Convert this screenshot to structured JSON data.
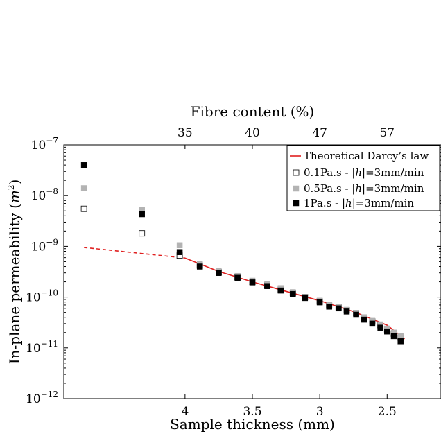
{
  "chart_data": {
    "type": "scatter",
    "title": "",
    "xlabel": "Sample thickness (mm)",
    "ylabel": "In-plane permeability (m²)",
    "ylabel_parts": [
      "In-plane permeability (",
      "m",
      "2",
      ")"
    ],
    "top_xlabel": "Fibre content (%)",
    "xlim": [
      4.9,
      2.1
    ],
    "x_reversed": true,
    "ylim": [
      1e-12,
      1e-07
    ],
    "y_scale": "log",
    "grid": false,
    "legend_placement": "top-right",
    "x_ticks": [
      {
        "value": 4.0,
        "label": "4"
      },
      {
        "value": 3.5,
        "label": "3.5"
      },
      {
        "value": 3.0,
        "label": "3"
      },
      {
        "value": 2.5,
        "label": "2.5"
      }
    ],
    "y_ticks": [
      {
        "value": 1e-07,
        "base": "10",
        "exp": "−7"
      },
      {
        "value": 1e-08,
        "base": "10",
        "exp": "−8"
      },
      {
        "value": 1e-09,
        "base": "10",
        "exp": "−9"
      },
      {
        "value": 1e-10,
        "base": "10",
        "exp": "−10"
      },
      {
        "value": 1e-11,
        "base": "10",
        "exp": "−11"
      },
      {
        "value": 1e-12,
        "base": "10",
        "exp": "−12"
      }
    ],
    "top_ticks": [
      {
        "x": 4.0,
        "label": "35"
      },
      {
        "x": 3.5,
        "label": "40"
      },
      {
        "x": 3.0,
        "label": "47"
      },
      {
        "x": 2.5,
        "label": "57"
      }
    ],
    "legend": [
      {
        "prefix": "Theoretical Darcy’s law",
        "suffix": ""
      },
      {
        "prefix": "0.1Pa.s - |",
        "suffix": "|=3mm/min"
      },
      {
        "prefix": "0.5Pa.s - |",
        "suffix": "|=3mm/min"
      },
      {
        "prefix": "1Pa.s - |",
        "suffix": "|=3mm/min"
      }
    ],
    "legend_symbol": "h",
    "colors": {
      "theory": "#e02020",
      "s01": "#ffffff",
      "s01_edge": "#000000",
      "s05": "#b3b3b3",
      "s1": "#000000"
    },
    "theory_line": {
      "dashed_x": [
        4.75,
        4.0
      ],
      "dashed_y": [
        9.5e-10,
        5.9e-10
      ],
      "solid_x": [
        4.0,
        3.75,
        3.5,
        3.25,
        3.0,
        2.75,
        2.5,
        2.37
      ],
      "solid_y": [
        5.9e-10,
        3.2e-10,
        2e-10,
        1.3e-10,
        8.5e-11,
        5.2e-11,
        2.8e-11,
        1.5e-11
      ]
    },
    "series": [
      {
        "key": "s01",
        "x": [
          4.75,
          4.32,
          4.04,
          3.89,
          3.75,
          3.61,
          3.5,
          3.39,
          3.29,
          3.2,
          3.11,
          3.0,
          2.93,
          2.86,
          2.8,
          2.73,
          2.67,
          2.61,
          2.55,
          2.5,
          2.45,
          2.4
        ],
        "y": [
          5.5e-09,
          1.8e-09,
          6.6e-10,
          4.2e-10,
          3.1e-10,
          2.5e-10,
          2e-10,
          1.7e-10,
          1.4e-10,
          1.2e-10,
          1e-10,
          8.2e-11,
          6.8e-11,
          6.3e-11,
          5.5e-11,
          4.8e-11,
          3.9e-11,
          3.3e-11,
          2.8e-11,
          2.3e-11,
          1.9e-11,
          1.6e-11
        ]
      },
      {
        "key": "s05",
        "x": [
          4.75,
          4.32,
          4.04,
          3.89,
          3.75,
          3.61,
          3.5,
          3.39,
          3.29,
          3.2,
          3.11,
          3.0,
          2.93,
          2.86,
          2.8,
          2.73,
          2.67,
          2.61,
          2.55,
          2.5,
          2.45,
          2.4
        ],
        "y": [
          1.4e-08,
          5.3e-09,
          1.05e-09,
          4.5e-10,
          3.3e-10,
          2.6e-10,
          2.1e-10,
          1.8e-10,
          1.5e-10,
          1.25e-10,
          1e-10,
          8.5e-11,
          7e-11,
          6.4e-11,
          5.6e-11,
          4.9e-11,
          4e-11,
          3.4e-11,
          2.9e-11,
          2.4e-11,
          2e-11,
          1.7e-11
        ]
      },
      {
        "key": "s1",
        "x": [
          4.75,
          4.32,
          4.04,
          3.89,
          3.75,
          3.61,
          3.5,
          3.39,
          3.29,
          3.2,
          3.11,
          3.0,
          2.93,
          2.86,
          2.8,
          2.73,
          2.67,
          2.61,
          2.55,
          2.5,
          2.45,
          2.4
        ],
        "y": [
          4e-08,
          4.3e-09,
          7.7e-10,
          4e-10,
          3e-10,
          2.4e-10,
          1.95e-10,
          1.65e-10,
          1.35e-10,
          1.15e-10,
          9.6e-11,
          7.9e-11,
          6.5e-11,
          6e-11,
          5.2e-11,
          4.5e-11,
          3.6e-11,
          3e-11,
          2.5e-11,
          2.1e-11,
          1.7e-11,
          1.35e-11
        ]
      }
    ]
  }
}
